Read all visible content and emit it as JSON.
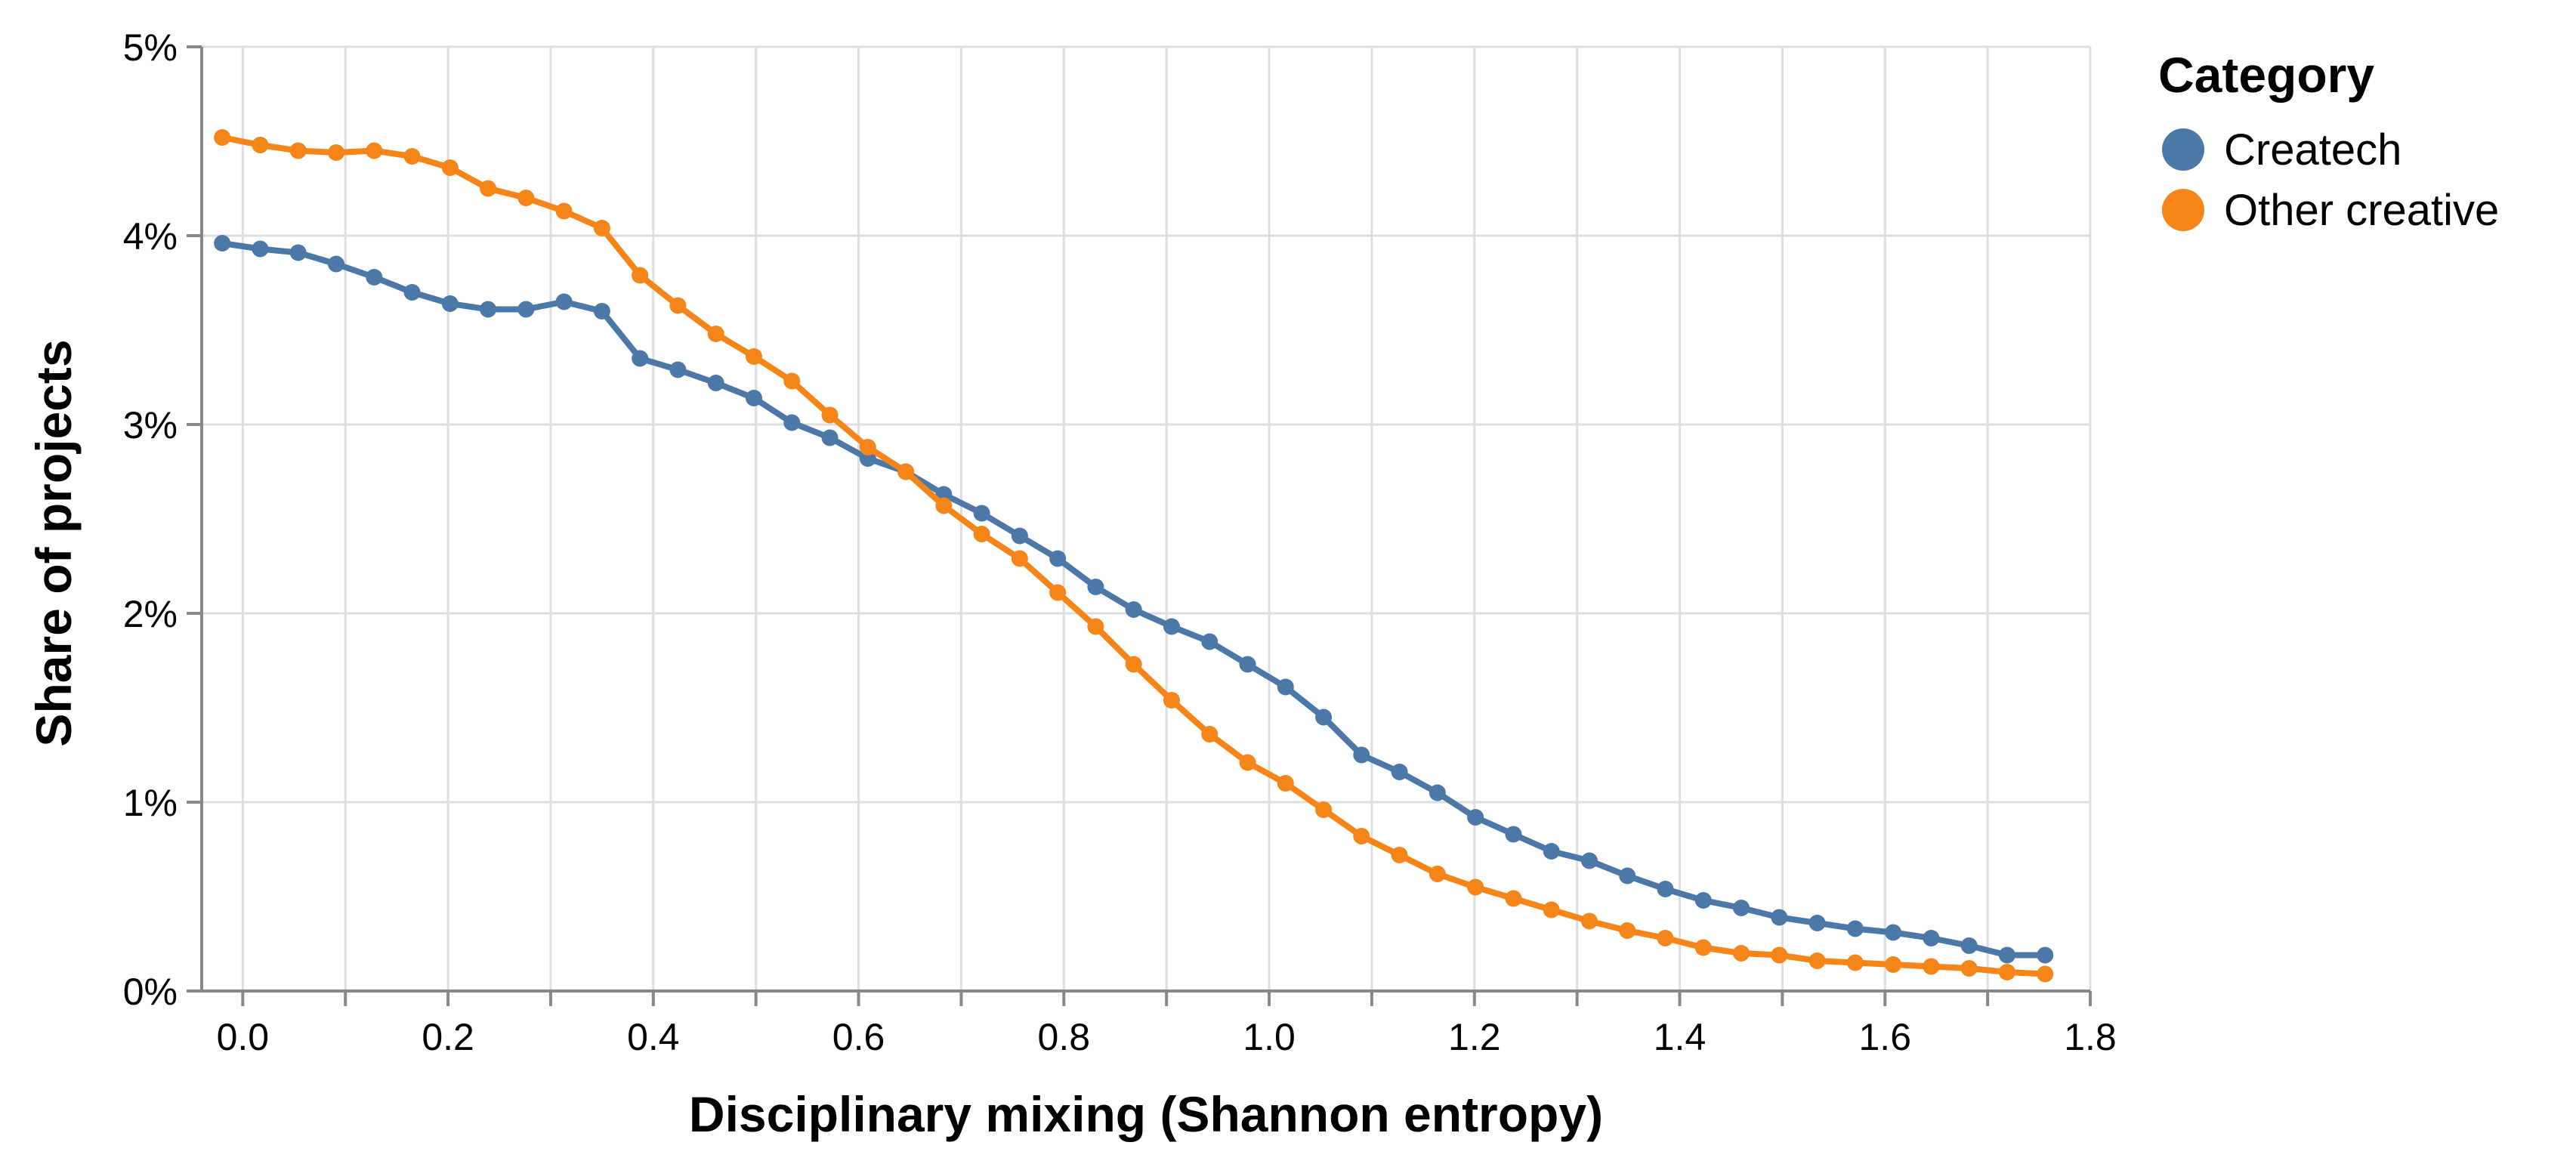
{
  "chart_data": {
    "type": "line",
    "xlabel": "Disciplinary mixing (Shannon entropy)",
    "ylabel": "Share of projects",
    "xlim": [
      -0.04,
      1.8
    ],
    "ylim": [
      0,
      0.05
    ],
    "x_ticks": [
      0.0,
      0.2,
      0.4,
      0.6,
      0.8,
      1.0,
      1.2,
      1.4,
      1.6,
      1.8
    ],
    "x_tick_labels": [
      "0.0",
      "0.2",
      "0.4",
      "0.6",
      "0.8",
      "1.0",
      "1.2",
      "1.4",
      "1.6",
      "1.8"
    ],
    "y_ticks": [
      0,
      0.01,
      0.02,
      0.03,
      0.04,
      0.05
    ],
    "y_tick_labels": [
      "0%",
      "1%",
      "2%",
      "3%",
      "4%",
      "5%"
    ],
    "grid": true,
    "legend": {
      "title": "Category",
      "position": "top-right"
    },
    "x": [
      -0.02,
      0.017,
      0.054,
      0.091,
      0.128,
      0.165,
      0.202,
      0.239,
      0.276,
      0.313,
      0.35,
      0.387,
      0.424,
      0.461,
      0.498,
      0.535,
      0.572,
      0.609,
      0.646,
      0.683,
      0.72,
      0.757,
      0.794,
      0.831,
      0.868,
      0.905,
      0.942,
      0.979,
      1.016,
      1.053,
      1.09,
      1.127,
      1.164,
      1.201,
      1.238,
      1.275,
      1.312,
      1.349,
      1.386,
      1.423,
      1.46,
      1.497,
      1.534,
      1.571,
      1.608,
      1.645,
      1.682,
      1.719,
      1.756
    ],
    "series": [
      {
        "name": "Createch",
        "color": "#4c78a8",
        "values": [
          0.0396,
          0.0393,
          0.0391,
          0.0385,
          0.0378,
          0.037,
          0.0364,
          0.0361,
          0.0361,
          0.0365,
          0.036,
          0.0335,
          0.0329,
          0.0322,
          0.0314,
          0.0301,
          0.0293,
          0.0282,
          0.0275,
          0.0263,
          0.0253,
          0.0241,
          0.0229,
          0.0214,
          0.0202,
          0.0193,
          0.0185,
          0.0173,
          0.0161,
          0.0145,
          0.0125,
          0.0116,
          0.0105,
          0.0092,
          0.0083,
          0.0074,
          0.0069,
          0.0061,
          0.0054,
          0.0048,
          0.0044,
          0.0039,
          0.0036,
          0.0033,
          0.0031,
          0.0028,
          0.0024,
          0.0019,
          0.0019
        ]
      },
      {
        "name": "Other creative",
        "color": "#f58518",
        "values": [
          0.0452,
          0.0448,
          0.0445,
          0.0444,
          0.0445,
          0.0442,
          0.0436,
          0.0425,
          0.042,
          0.0413,
          0.0404,
          0.0379,
          0.0363,
          0.0348,
          0.0336,
          0.0323,
          0.0305,
          0.0288,
          0.0275,
          0.0257,
          0.0242,
          0.0229,
          0.0211,
          0.0193,
          0.0173,
          0.0154,
          0.0136,
          0.0121,
          0.011,
          0.0096,
          0.0082,
          0.0072,
          0.0062,
          0.0055,
          0.0049,
          0.0043,
          0.0037,
          0.0032,
          0.0028,
          0.0023,
          0.002,
          0.0019,
          0.0016,
          0.0015,
          0.0014,
          0.0013,
          0.0012,
          0.001,
          0.0009
        ]
      }
    ]
  }
}
